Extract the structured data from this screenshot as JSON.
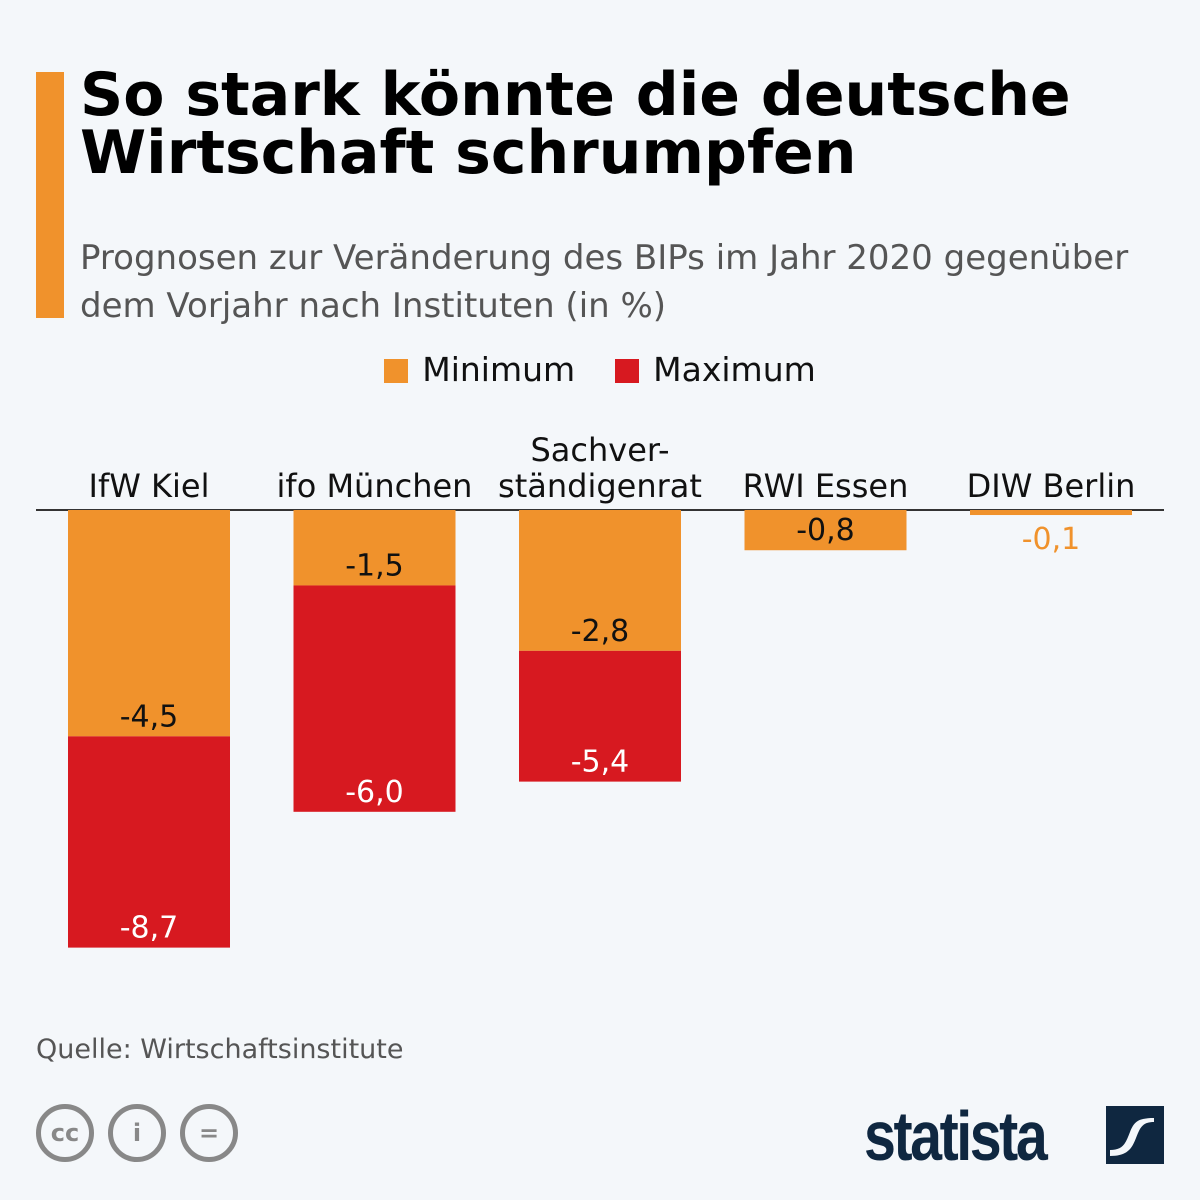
{
  "header": {
    "title": "So stark könnte die deutsche Wirtschaft schrumpfen",
    "subtitle": "Prognosen zur Veränderung des BIPs im Jahr 2020 gegenüber dem Vorjahr nach Instituten (in %)"
  },
  "chart_data": {
    "type": "bar",
    "stacked": "range",
    "categories": [
      "IfW Kiel",
      "ifo München",
      "Sachver-\nständigenrat",
      "RWI Essen",
      "DIW Berlin"
    ],
    "series": [
      {
        "name": "Minimum",
        "color": "#f0922c",
        "values": [
          -4.5,
          -1.5,
          -2.8,
          -0.8,
          -0.1
        ],
        "labels": [
          "-4,5",
          "-1,5",
          "-2,8",
          "-0,8",
          "-0,1"
        ]
      },
      {
        "name": "Maximum",
        "color": "#d71920",
        "values": [
          -8.7,
          -6.0,
          -5.4,
          null,
          null
        ],
        "labels": [
          "-8,7",
          "-6,0",
          "-5,4",
          null,
          null
        ]
      }
    ],
    "legend": "top-center",
    "grid": false
  },
  "footer": {
    "source": "Quelle: Wirtschaftsinstitute",
    "logo": "statista",
    "license_icons": [
      "cc-icon",
      "by-icon",
      "nd-icon"
    ]
  }
}
